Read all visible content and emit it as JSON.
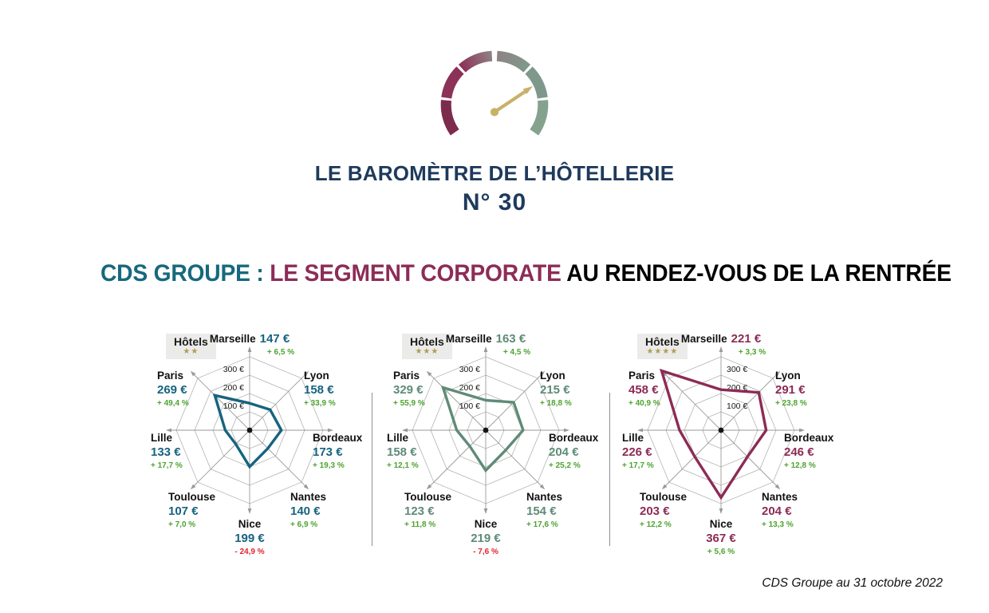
{
  "masthead": {
    "title": "LE BAROMÈTRE DE L’HÔTELLERIE",
    "issue": "N° 30",
    "gauge_segment_colors": [
      "#7D2B4D",
      "#8C3157",
      "#8E5F72",
      "#889189",
      "#7E998C",
      "#85A28F"
    ],
    "needle_color": "#C8B169",
    "navy_color": "#1E3A5C"
  },
  "headline": {
    "segment1": "CDS GROUPE : ",
    "segment2": "LE SEGMENT CORPORATE ",
    "segment3": "AU RENDEZ-VOUS DE LA RENTRÉE",
    "segment1_color": "#17697D",
    "segment2_color": "#8C2D57",
    "segment3_color": "#000000"
  },
  "footer": {
    "source": "CDS Groupe au 31 octobre 2022"
  },
  "chart_data": [
    {
      "type": "radar",
      "badge": "Hôtels",
      "stars": "★★",
      "line_color": "#16637F",
      "max": 400,
      "ring_values": [
        100,
        200,
        300,
        400
      ],
      "ring_labels": [
        "100 €",
        "200 €",
        "300 €"
      ],
      "ring_labels_side": "left",
      "grid": true,
      "axes": [
        "Marseille",
        "Lyon",
        "Bordeaux",
        "Nantes",
        "Nice",
        "Toulouse",
        "Lille",
        "Paris"
      ],
      "values": [
        147,
        158,
        173,
        140,
        199,
        107,
        133,
        269
      ],
      "cities": [
        {
          "name": "Marseille",
          "value": 147,
          "value_label": "147 €",
          "change_label": "+ 6,5 %",
          "change_color": "#4DA32F"
        },
        {
          "name": "Lyon",
          "value": 158,
          "value_label": "158 €",
          "change_label": "+ 33,9 %",
          "change_color": "#4DA32F"
        },
        {
          "name": "Bordeaux",
          "value": 173,
          "value_label": "173 €",
          "change_label": "+ 19,3 %",
          "change_color": "#4DA32F"
        },
        {
          "name": "Nantes",
          "value": 140,
          "value_label": "140 €",
          "change_label": "+ 6,9 %",
          "change_color": "#4DA32F"
        },
        {
          "name": "Nice",
          "value": 199,
          "value_label": "199 €",
          "change_label": "- 24,9 %",
          "change_color": "#E4222D"
        },
        {
          "name": "Toulouse",
          "value": 107,
          "value_label": "107 €",
          "change_label": "+ 7,0 %",
          "change_color": "#4DA32F"
        },
        {
          "name": "Lille",
          "value": 133,
          "value_label": "133 €",
          "change_label": "+ 17,7 %",
          "change_color": "#4DA32F"
        },
        {
          "name": "Paris",
          "value": 269,
          "value_label": "269 €",
          "change_label": "+ 49,4 %",
          "change_color": "#4DA32F"
        }
      ]
    },
    {
      "type": "radar",
      "badge": "Hôtels",
      "stars": "★★★",
      "line_color": "#5E8B77",
      "max": 400,
      "ring_values": [
        100,
        200,
        300,
        400
      ],
      "ring_labels": [
        "100 €",
        "200 €",
        "300 €"
      ],
      "ring_labels_side": "left",
      "grid": true,
      "axes": [
        "Marseille",
        "Lyon",
        "Bordeaux",
        "Nantes",
        "Nice",
        "Toulouse",
        "Lille",
        "Paris"
      ],
      "values": [
        163,
        215,
        204,
        154,
        219,
        123,
        158,
        329
      ],
      "cities": [
        {
          "name": "Marseille",
          "value": 163,
          "value_label": "163 €",
          "change_label": "+ 4,5 %",
          "change_color": "#4DA32F"
        },
        {
          "name": "Lyon",
          "value": 215,
          "value_label": "215 €",
          "change_label": "+ 18,8 %",
          "change_color": "#4DA32F"
        },
        {
          "name": "Bordeaux",
          "value": 204,
          "value_label": "204 €",
          "change_label": "+ 25,2 %",
          "change_color": "#4DA32F"
        },
        {
          "name": "Nantes",
          "value": 154,
          "value_label": "154 €",
          "change_label": "+ 17,6 %",
          "change_color": "#4DA32F"
        },
        {
          "name": "Nice",
          "value": 219,
          "value_label": "219 €",
          "change_label": "- 7,6 %",
          "change_color": "#E4222D"
        },
        {
          "name": "Toulouse",
          "value": 123,
          "value_label": "123 €",
          "change_label": "+ 11,8 %",
          "change_color": "#4DA32F"
        },
        {
          "name": "Lille",
          "value": 158,
          "value_label": "158 €",
          "change_label": "+ 12,1 %",
          "change_color": "#4DA32F"
        },
        {
          "name": "Paris",
          "value": 329,
          "value_label": "329 €",
          "change_label": "+ 55,9 %",
          "change_color": "#4DA32F"
        }
      ]
    },
    {
      "type": "radar",
      "badge": "Hôtels",
      "stars": "★★★★",
      "line_color": "#8C2B55",
      "max": 400,
      "ring_values": [
        100,
        200,
        300,
        400
      ],
      "ring_labels": [
        "100 €",
        "200 €",
        "300 €"
      ],
      "ring_labels_side": "right",
      "grid": true,
      "axes": [
        "Marseille",
        "Lyon",
        "Bordeaux",
        "Nantes",
        "Nice",
        "Toulouse",
        "Lille",
        "Paris"
      ],
      "values": [
        221,
        291,
        246,
        204,
        367,
        203,
        226,
        458
      ],
      "cities": [
        {
          "name": "Marseille",
          "value": 221,
          "value_label": "221 €",
          "change_label": "+ 3,3 %",
          "change_color": "#4DA32F"
        },
        {
          "name": "Lyon",
          "value": 291,
          "value_label": "291 €",
          "change_label": "+ 23,8 %",
          "change_color": "#4DA32F"
        },
        {
          "name": "Bordeaux",
          "value": 246,
          "value_label": "246 €",
          "change_label": "+ 12,8 %",
          "change_color": "#4DA32F"
        },
        {
          "name": "Nantes",
          "value": 204,
          "value_label": "204 €",
          "change_label": "+ 13,3 %",
          "change_color": "#4DA32F"
        },
        {
          "name": "Nice",
          "value": 367,
          "value_label": "367 €",
          "change_label": "+ 5,6 %",
          "change_color": "#4DA32F"
        },
        {
          "name": "Toulouse",
          "value": 203,
          "value_label": "203 €",
          "change_label": "+ 12,2 %",
          "change_color": "#4DA32F"
        },
        {
          "name": "Lille",
          "value": 226,
          "value_label": "226 €",
          "change_label": "+ 17,7 %",
          "change_color": "#4DA32F"
        },
        {
          "name": "Paris",
          "value": 458,
          "value_label": "458 €",
          "change_label": "+ 40,9 %",
          "change_color": "#4DA32F"
        }
      ]
    }
  ]
}
